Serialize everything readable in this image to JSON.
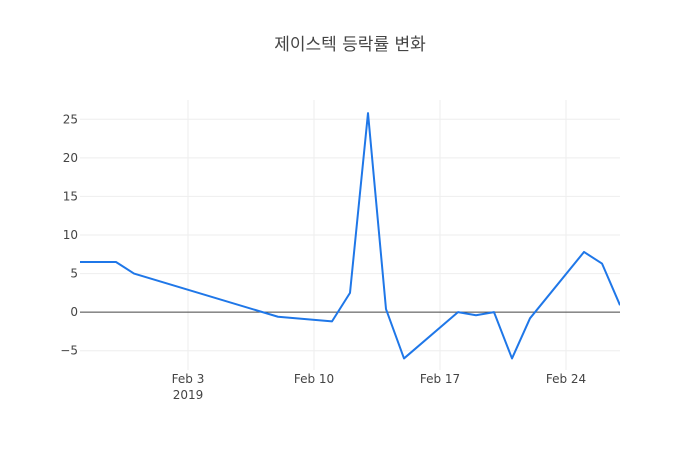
{
  "chart_data": {
    "type": "line",
    "title": "제이스텍 등락률 변화",
    "xlabel": "",
    "ylabel": "",
    "xlim": [
      "2019-01-28",
      "2019-02-27"
    ],
    "ylim": [
      -7.5,
      27.5
    ],
    "x_tick_labels": [
      "Feb 3",
      "Feb 10",
      "Feb 17",
      "Feb 24"
    ],
    "x_tick_values": [
      "2019-02-03",
      "2019-02-10",
      "2019-02-17",
      "2019-02-24"
    ],
    "x_year_label": "2019",
    "y_tick_values": [
      -5,
      0,
      5,
      10,
      15,
      20,
      25
    ],
    "y_tick_labels": [
      "−5",
      "0",
      "5",
      "10",
      "15",
      "20",
      "25"
    ],
    "grid": true,
    "zero_line": true,
    "legend": "none",
    "colors": {
      "line": "#1f77e8",
      "grid": "#eeeeee",
      "zero_line": "#444444",
      "text": "#444444",
      "background": "#ffffff"
    },
    "series": [
      {
        "x": [
          "2019-01-28",
          "2019-01-30",
          "2019-01-31",
          "2019-02-08",
          "2019-02-11",
          "2019-02-12",
          "2019-02-13",
          "2019-02-14",
          "2019-02-15",
          "2019-02-18",
          "2019-02-19",
          "2019-02-20",
          "2019-02-21",
          "2019-02-22",
          "2019-02-25",
          "2019-02-26",
          "2019-02-27"
        ],
        "values": [
          6.5,
          6.5,
          5.0,
          -0.6,
          -1.2,
          2.5,
          25.8,
          0.4,
          -6.0,
          0.0,
          -0.4,
          0.0,
          -6.0,
          -0.8,
          7.8,
          6.3,
          0.9
        ]
      }
    ]
  }
}
